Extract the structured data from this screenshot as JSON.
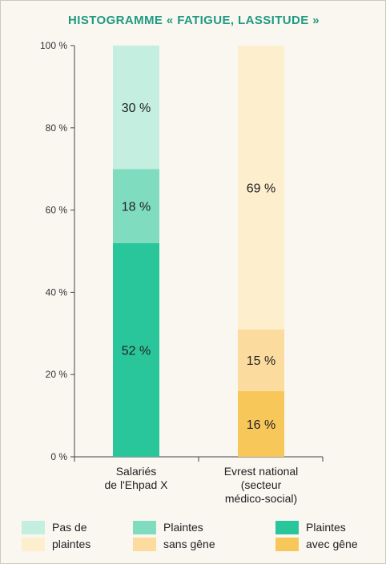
{
  "title": "HISTOGRAMME « FATIGUE, LASSITUDE »",
  "chart_data": {
    "type": "bar",
    "stacked": true,
    "ylim": [
      0,
      100
    ],
    "yticks": [
      "0 %",
      "20 %",
      "40 %",
      "60 %",
      "80 %",
      "100 %"
    ],
    "ytick_values": [
      0,
      20,
      40,
      60,
      80,
      100
    ],
    "categories": [
      "Salariés de l'Ehpad X",
      "Evrest national (secteur médico-social)"
    ],
    "category_lines": [
      [
        "Salariés",
        "de l'Ehpad X"
      ],
      [
        "Evrest national",
        "(secteur",
        "médico-social)"
      ]
    ],
    "bars": [
      {
        "category": "Salariés de l'Ehpad X",
        "segments": [
          {
            "value": 52,
            "label": "52 %",
            "color": "#2ac69b"
          },
          {
            "value": 18,
            "label": "18 %",
            "color": "#7fdcbf"
          },
          {
            "value": 30,
            "label": "30 %",
            "color": "#c3eee0"
          }
        ]
      },
      {
        "category": "Evrest national (secteur médico-social)",
        "segments": [
          {
            "value": 16,
            "label": "16 %",
            "color": "#f8c75a"
          },
          {
            "value": 15,
            "label": "15 %",
            "color": "#fcdc9e"
          },
          {
            "value": 69,
            "label": "69 %",
            "color": "#fdeece"
          }
        ]
      }
    ],
    "legend": [
      {
        "line1": "Pas de",
        "line2": "plaintes",
        "colors": [
          "#c3eee0",
          "#fdeece"
        ]
      },
      {
        "line1": "Plaintes",
        "line2": "sans gêne",
        "colors": [
          "#7fdcbf",
          "#fcdc9e"
        ]
      },
      {
        "line1": "Plaintes",
        "line2": "avec gêne",
        "colors": [
          "#2ac69b",
          "#f8c75a"
        ]
      }
    ],
    "grid": false,
    "legend_position": "bottom"
  }
}
